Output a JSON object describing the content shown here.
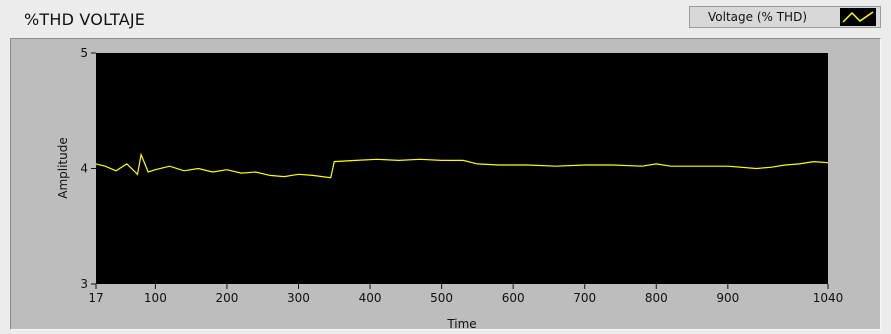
{
  "title": "%THD VOLTAJE",
  "legend": {
    "label": "Voltage (% THD)"
  },
  "colors": {
    "plot_bg": "#000000",
    "series": "#ffff00",
    "frame": "#bdbdbd"
  },
  "chart_data": {
    "type": "line",
    "title": "%THD VOLTAJE",
    "xlabel": "Time",
    "ylabel": "Amplitude",
    "xlim": [
      17,
      1040
    ],
    "ylim": [
      3,
      5
    ],
    "xticks": [
      17,
      100,
      200,
      300,
      400,
      500,
      600,
      700,
      800,
      900,
      1040
    ],
    "yticks": [
      3,
      4,
      5
    ],
    "grid": false,
    "legend_position": "top-right",
    "series": [
      {
        "name": "Voltage (% THD)",
        "x": [
          17,
          30,
          45,
          60,
          75,
          80,
          90,
          100,
          120,
          140,
          160,
          180,
          200,
          220,
          240,
          260,
          280,
          300,
          320,
          345,
          350,
          380,
          410,
          440,
          470,
          500,
          530,
          550,
          580,
          620,
          660,
          700,
          740,
          780,
          800,
          820,
          860,
          900,
          940,
          960,
          980,
          1000,
          1020,
          1040
        ],
        "y": [
          4.04,
          4.02,
          3.98,
          4.04,
          3.95,
          4.12,
          3.97,
          3.99,
          4.02,
          3.98,
          4.0,
          3.97,
          3.99,
          3.96,
          3.97,
          3.94,
          3.93,
          3.95,
          3.94,
          3.92,
          4.06,
          4.07,
          4.08,
          4.07,
          4.08,
          4.07,
          4.07,
          4.04,
          4.03,
          4.03,
          4.02,
          4.03,
          4.03,
          4.02,
          4.04,
          4.02,
          4.02,
          4.02,
          4.0,
          4.01,
          4.03,
          4.04,
          4.06,
          4.05
        ]
      }
    ]
  }
}
